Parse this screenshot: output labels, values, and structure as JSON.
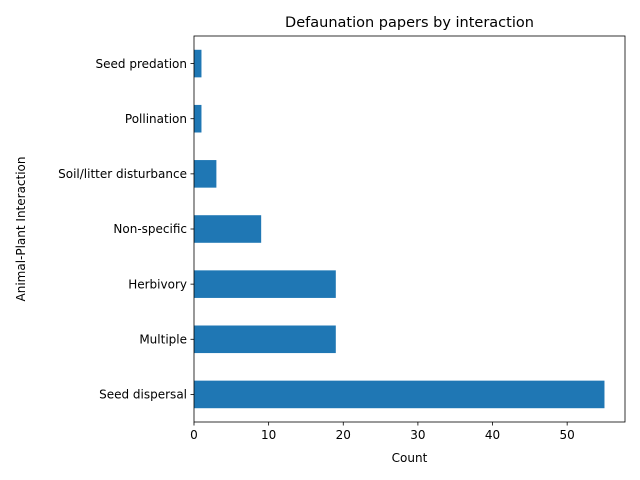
{
  "chart_data": {
    "type": "bar",
    "orientation": "horizontal",
    "title": "Defaunation papers by interaction",
    "xlabel": "Count",
    "ylabel": "Animal-Plant Interaction",
    "categories": [
      "Seed dispersal",
      "Multiple",
      "Herbivory",
      "Non-specific",
      "Soil/litter disturbance",
      "Pollination",
      "Seed predation"
    ],
    "values": [
      55,
      19,
      19,
      9,
      3,
      1,
      1
    ],
    "xlim": [
      0,
      57.75
    ],
    "xticks": [
      0,
      10,
      20,
      30,
      40,
      50
    ],
    "bar_color": "#1f77b4",
    "grid": false,
    "legend": "none"
  }
}
